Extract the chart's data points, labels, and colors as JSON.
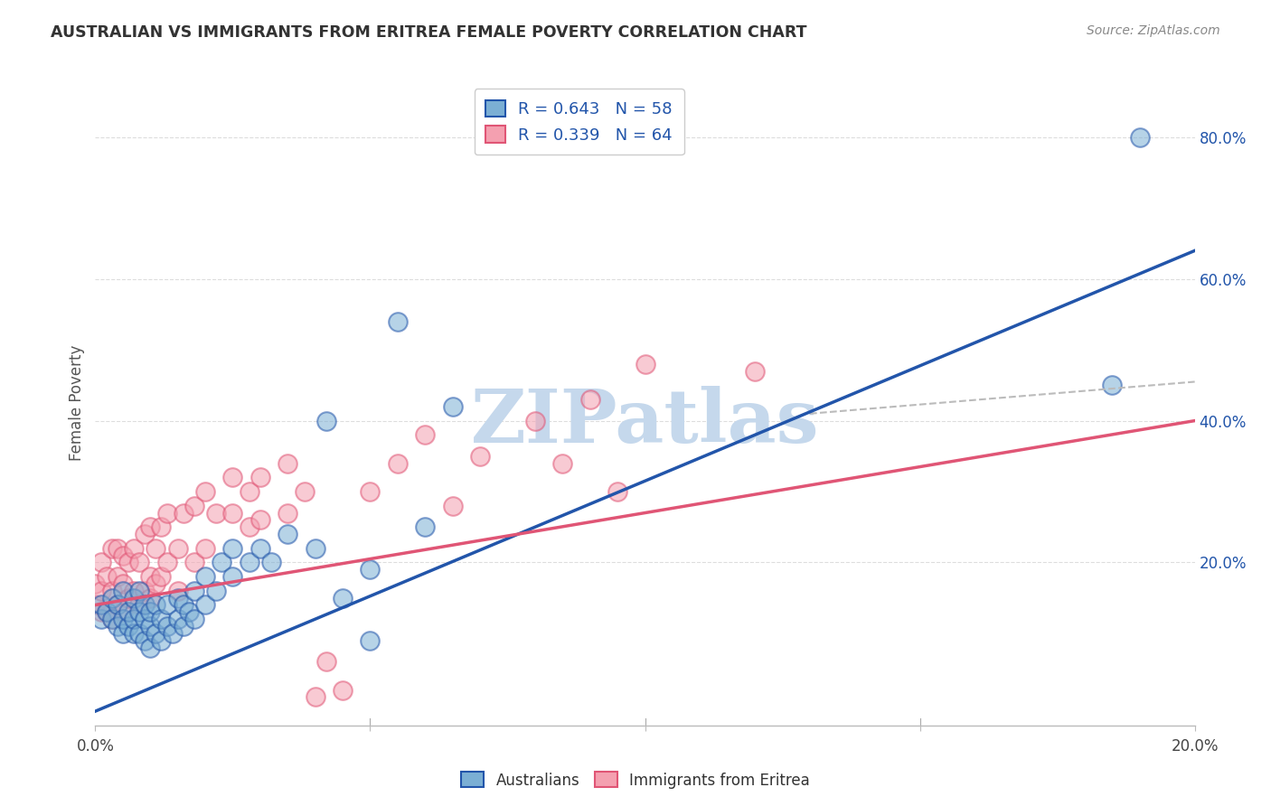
{
  "title": "AUSTRALIAN VS IMMIGRANTS FROM ERITREA FEMALE POVERTY CORRELATION CHART",
  "source": "Source: ZipAtlas.com",
  "ylabel": "Female Poverty",
  "right_yticklabels": [
    "20.0%",
    "40.0%",
    "60.0%",
    "80.0%"
  ],
  "right_yticks": [
    0.2,
    0.4,
    0.6,
    0.8
  ],
  "xlim": [
    0.0,
    0.2
  ],
  "ylim": [
    -0.03,
    0.88
  ],
  "legend1_label": "R = 0.643   N = 58",
  "legend2_label": "R = 0.339   N = 64",
  "legend_bottom_label1": "Australians",
  "legend_bottom_label2": "Immigrants from Eritrea",
  "blue_color": "#7BAFD4",
  "pink_color": "#F4A0B0",
  "blue_line_color": "#2255AA",
  "pink_line_color": "#E05575",
  "watermark": "ZIPatlas",
  "watermark_color": "#C5D8EC",
  "blue_scatter_x": [
    0.001,
    0.001,
    0.002,
    0.003,
    0.003,
    0.004,
    0.004,
    0.005,
    0.005,
    0.005,
    0.006,
    0.006,
    0.007,
    0.007,
    0.007,
    0.008,
    0.008,
    0.008,
    0.009,
    0.009,
    0.009,
    0.01,
    0.01,
    0.01,
    0.011,
    0.011,
    0.012,
    0.012,
    0.013,
    0.013,
    0.014,
    0.015,
    0.015,
    0.016,
    0.016,
    0.017,
    0.018,
    0.018,
    0.02,
    0.02,
    0.022,
    0.023,
    0.025,
    0.025,
    0.028,
    0.03,
    0.032,
    0.035,
    0.04,
    0.042,
    0.045,
    0.05,
    0.05,
    0.055,
    0.06,
    0.065,
    0.185,
    0.19
  ],
  "blue_scatter_y": [
    0.12,
    0.14,
    0.13,
    0.12,
    0.15,
    0.11,
    0.14,
    0.1,
    0.12,
    0.16,
    0.11,
    0.13,
    0.1,
    0.12,
    0.15,
    0.1,
    0.13,
    0.16,
    0.09,
    0.12,
    0.14,
    0.08,
    0.11,
    0.13,
    0.1,
    0.14,
    0.09,
    0.12,
    0.11,
    0.14,
    0.1,
    0.12,
    0.15,
    0.11,
    0.14,
    0.13,
    0.12,
    0.16,
    0.14,
    0.18,
    0.16,
    0.2,
    0.18,
    0.22,
    0.2,
    0.22,
    0.2,
    0.24,
    0.22,
    0.4,
    0.15,
    0.19,
    0.09,
    0.54,
    0.25,
    0.42,
    0.45,
    0.8
  ],
  "pink_scatter_x": [
    0.0,
    0.0,
    0.001,
    0.001,
    0.001,
    0.002,
    0.002,
    0.003,
    0.003,
    0.003,
    0.004,
    0.004,
    0.004,
    0.005,
    0.005,
    0.005,
    0.006,
    0.006,
    0.007,
    0.007,
    0.008,
    0.008,
    0.009,
    0.009,
    0.01,
    0.01,
    0.01,
    0.011,
    0.011,
    0.012,
    0.012,
    0.013,
    0.013,
    0.015,
    0.015,
    0.016,
    0.018,
    0.018,
    0.02,
    0.02,
    0.022,
    0.025,
    0.025,
    0.028,
    0.028,
    0.03,
    0.03,
    0.035,
    0.035,
    0.038,
    0.04,
    0.042,
    0.045,
    0.05,
    0.055,
    0.06,
    0.065,
    0.07,
    0.08,
    0.085,
    0.09,
    0.095,
    0.1,
    0.12
  ],
  "pink_scatter_y": [
    0.14,
    0.17,
    0.13,
    0.16,
    0.2,
    0.13,
    0.18,
    0.12,
    0.16,
    0.22,
    0.14,
    0.18,
    0.22,
    0.13,
    0.17,
    0.21,
    0.15,
    0.2,
    0.16,
    0.22,
    0.14,
    0.2,
    0.16,
    0.24,
    0.15,
    0.18,
    0.25,
    0.17,
    0.22,
    0.18,
    0.25,
    0.2,
    0.27,
    0.16,
    0.22,
    0.27,
    0.2,
    0.28,
    0.22,
    0.3,
    0.27,
    0.27,
    0.32,
    0.25,
    0.3,
    0.26,
    0.32,
    0.27,
    0.34,
    0.3,
    0.01,
    0.06,
    0.02,
    0.3,
    0.34,
    0.38,
    0.28,
    0.35,
    0.4,
    0.34,
    0.43,
    0.3,
    0.48,
    0.47
  ],
  "blue_line_x": [
    0.0,
    0.2
  ],
  "blue_line_y": [
    -0.01,
    0.64
  ],
  "pink_line_x": [
    0.0,
    0.2
  ],
  "pink_line_y": [
    0.14,
    0.4
  ],
  "dashed_line_x": [
    0.13,
    0.2
  ],
  "dashed_line_y": [
    0.41,
    0.455
  ]
}
